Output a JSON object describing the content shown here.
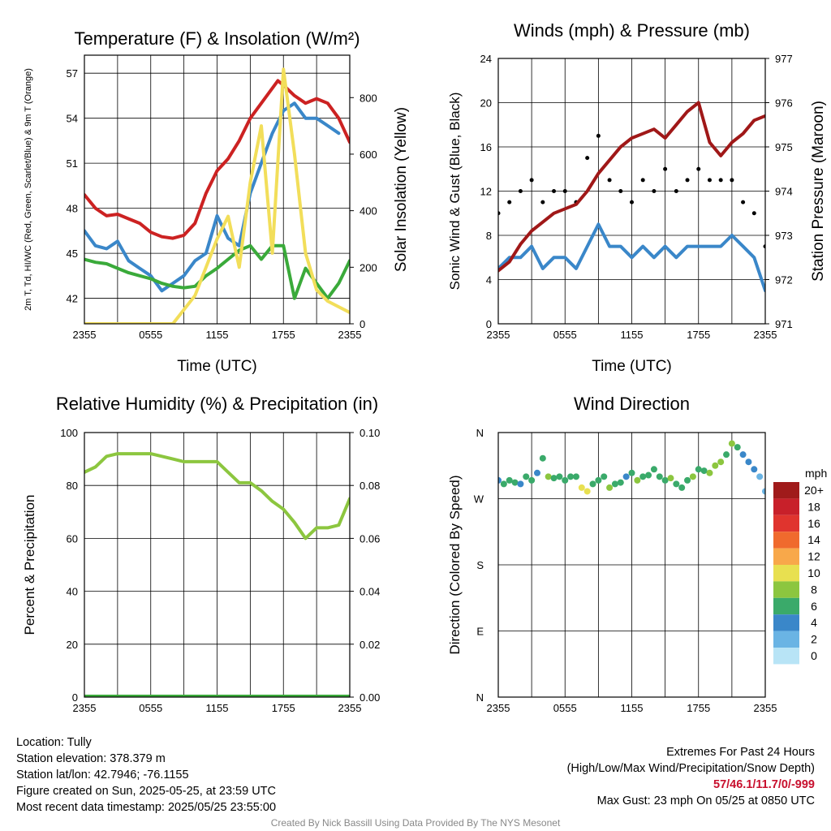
{
  "chart_data": [
    {
      "type": "line",
      "title": "Temperature (F) & Insolation (W/m²)",
      "xlabel": "Time (UTC)",
      "ylabel": "2m T, Td, HI/WC (Red, Green, Scarlet/Blue) & 9m T (Orange)",
      "y2label": "Solar Insolation (Yellow)",
      "x_ticks": [
        "2355",
        "0555",
        "1155",
        "1755",
        "2355"
      ],
      "yticks": [
        42,
        45,
        48,
        51,
        54,
        57
      ],
      "ylim": [
        40.3,
        58.2
      ],
      "y2ticks": [
        0,
        200,
        400,
        600,
        800
      ],
      "y2lim": [
        0,
        950
      ],
      "series": [
        {
          "axis": "left",
          "color": "#cc2222",
          "x": [
            0,
            1,
            2,
            3,
            4,
            5,
            6,
            7,
            8,
            9,
            10,
            11,
            12,
            13,
            14,
            15,
            16,
            17,
            17.5,
            18,
            19,
            20,
            21,
            22,
            22.5,
            23,
            24
          ],
          "values": [
            48.9,
            48.0,
            47.5,
            47.6,
            47.3,
            47.0,
            46.4,
            46.1,
            46.0,
            46.2,
            47.0,
            49.0,
            50.5,
            51.3,
            52.5,
            54.0,
            55.0,
            56.0,
            56.5,
            56.2,
            55.5,
            55.0,
            55.3,
            55.0,
            54.5,
            54.0,
            52.4
          ]
        },
        {
          "axis": "left",
          "color": "#3a87c9",
          "x": [
            0,
            1,
            2,
            3,
            4,
            5,
            6,
            7,
            8,
            9,
            10,
            11,
            12,
            13,
            14,
            15,
            16,
            17,
            18,
            19,
            20,
            21,
            22,
            23
          ],
          "values": [
            46.5,
            45.5,
            45.3,
            45.8,
            44.5,
            44.0,
            43.5,
            42.5,
            43.0,
            43.5,
            44.5,
            45.0,
            47.5,
            46.0,
            45.5,
            49.0,
            51.0,
            53.0,
            54.5,
            55.0,
            54.0,
            54.0,
            53.5,
            53.0
          ]
        },
        {
          "axis": "left",
          "color": "#3aaa3a",
          "x": [
            0,
            1,
            2,
            3,
            4,
            5,
            6,
            7,
            8,
            9,
            10,
            11,
            12,
            13,
            14,
            15,
            16,
            17,
            18,
            19,
            20,
            21,
            22,
            23,
            24
          ],
          "values": [
            44.6,
            44.4,
            44.3,
            44.0,
            43.7,
            43.5,
            43.3,
            43.0,
            42.8,
            42.7,
            42.8,
            43.5,
            44.0,
            44.6,
            45.2,
            45.5,
            44.6,
            45.5,
            45.5,
            42.0,
            44.0,
            43.0,
            42.0,
            43.0,
            44.5
          ]
        },
        {
          "axis": "right",
          "color": "#f2de5a",
          "x": [
            0,
            8,
            10,
            11,
            12,
            13,
            14,
            15,
            16,
            17,
            18,
            19,
            20,
            21,
            22,
            23,
            24
          ],
          "values": [
            0,
            0,
            100,
            200,
            300,
            380,
            200,
            500,
            700,
            250,
            900,
            600,
            250,
            120,
            80,
            60,
            40
          ]
        }
      ]
    },
    {
      "type": "line",
      "title": "Winds (mph) & Pressure (mb)",
      "xlabel": "Time (UTC)",
      "ylabel": "Sonic Wind & Gust (Blue, Black)",
      "y2label": "Station Pressure (Maroon)",
      "x_ticks": [
        "2355",
        "0555",
        "1155",
        "1755",
        "2355"
      ],
      "yticks": [
        0,
        4,
        8,
        12,
        16,
        20,
        24
      ],
      "ylim": [
        0,
        24
      ],
      "y2ticks": [
        971,
        972,
        973,
        974,
        975,
        976,
        977
      ],
      "y2lim": [
        971,
        977
      ],
      "series": [
        {
          "axis": "left",
          "color": "#3a87c9",
          "x": [
            0,
            1,
            2,
            3,
            4,
            5,
            6,
            7,
            8,
            9,
            10,
            11,
            12,
            13,
            14,
            15,
            16,
            17,
            18,
            19,
            20,
            21,
            22,
            23,
            24
          ],
          "values": [
            5,
            6,
            6,
            7,
            5,
            6,
            6,
            5,
            7,
            9,
            7,
            7,
            6,
            7,
            6,
            7,
            6,
            7,
            7,
            7,
            7,
            8,
            7,
            6,
            3
          ]
        },
        {
          "axis": "left",
          "color": "#000000",
          "type": "scatter",
          "x": [
            0,
            1,
            2,
            3,
            4,
            5,
            6,
            7,
            8,
            9,
            10,
            11,
            12,
            13,
            14,
            15,
            16,
            17,
            18,
            19,
            20,
            21,
            22,
            23,
            24
          ],
          "values": [
            10,
            11,
            12,
            13,
            11,
            12,
            12,
            11,
            15,
            17,
            13,
            12,
            11,
            13,
            12,
            14,
            12,
            13,
            14,
            13,
            13,
            13,
            11,
            10,
            7
          ]
        },
        {
          "axis": "right",
          "color": "#a01818",
          "x": [
            0,
            1,
            2,
            3,
            4,
            5,
            6,
            7,
            8,
            9,
            10,
            11,
            12,
            13,
            14,
            15,
            16,
            17,
            18,
            19,
            20,
            21,
            22,
            23,
            24
          ],
          "values": [
            972.2,
            972.4,
            972.8,
            973.1,
            973.3,
            973.5,
            973.6,
            973.7,
            974.0,
            974.4,
            974.7,
            975.0,
            975.2,
            975.3,
            975.4,
            975.2,
            975.5,
            975.8,
            976.0,
            975.1,
            974.8,
            975.1,
            975.3,
            975.6,
            975.7
          ]
        }
      ]
    },
    {
      "type": "line",
      "title": "Relative Humidity (%) & Precipitation (in)",
      "xlabel": "",
      "ylabel": "Percent & Precipitation",
      "x_ticks": [
        "2355",
        "0555",
        "1155",
        "1755",
        "2355"
      ],
      "yticks": [
        0,
        20,
        40,
        60,
        80,
        100
      ],
      "ylim": [
        0,
        100
      ],
      "y2ticks": [
        "0.00",
        "0.02",
        "0.04",
        "0.06",
        "0.08",
        "0.10"
      ],
      "y2lim": [
        0,
        0.1
      ],
      "series": [
        {
          "axis": "left",
          "color": "#8cc63f",
          "x": [
            0,
            1,
            2,
            3,
            4,
            5,
            6,
            7,
            8,
            9,
            10,
            11,
            12,
            13,
            14,
            15,
            16,
            17,
            18,
            19,
            20,
            21,
            22,
            23,
            24
          ],
          "values": [
            85,
            87,
            91,
            92,
            92,
            92,
            92,
            91,
            90,
            89,
            89,
            89,
            89,
            85,
            81,
            81,
            78,
            74,
            71,
            66,
            60,
            64,
            64,
            65,
            75
          ]
        },
        {
          "axis": "right",
          "color": "#3aaa3a",
          "x": [
            0,
            24
          ],
          "values": [
            0,
            0
          ]
        }
      ]
    },
    {
      "type": "scatter",
      "title": "Wind Direction",
      "ylabel": "Direction (Colored By Speed)",
      "x_ticks": [
        "2355",
        "0555",
        "1155",
        "1755",
        "2355"
      ],
      "yticks": [
        "N",
        "E",
        "S",
        "W",
        "N"
      ],
      "ylim": [
        0,
        360
      ],
      "legend": {
        "title": "mph",
        "labels": [
          "20+",
          "18",
          "16",
          "14",
          "12",
          "10",
          "8",
          "6",
          "4",
          "2",
          "0"
        ],
        "colors": [
          "#a01b1b",
          "#c8202a",
          "#e0342e",
          "#f06a2d",
          "#f8a84a",
          "#e8e050",
          "#8cc63f",
          "#3aaa6a",
          "#3a87c9",
          "#6ab4e4",
          "#b8e4f6"
        ],
        "placement": "right"
      },
      "points": {
        "x": [
          0,
          0.5,
          1,
          1.5,
          2,
          2.5,
          3,
          3.5,
          4,
          4.5,
          5,
          5.5,
          6,
          6.5,
          7,
          7.5,
          8,
          8.5,
          9,
          9.5,
          10,
          10.5,
          11,
          11.5,
          12,
          12.5,
          13,
          13.5,
          14,
          14.5,
          15,
          15.5,
          16,
          16.5,
          17,
          17.5,
          18,
          18.5,
          19,
          19.5,
          20,
          20.5,
          21,
          21.5,
          22,
          22.5,
          23,
          23.5,
          24
        ],
        "dir": [
          295,
          290,
          295,
          292,
          290,
          300,
          295,
          305,
          325,
          300,
          298,
          300,
          295,
          300,
          300,
          285,
          280,
          290,
          295,
          300,
          285,
          290,
          292,
          300,
          305,
          295,
          300,
          302,
          310,
          300,
          295,
          298,
          290,
          285,
          295,
          300,
          310,
          308,
          305,
          315,
          320,
          330,
          345,
          340,
          330,
          320,
          310,
          300,
          280
        ],
        "speed": [
          5,
          6,
          6,
          7,
          5,
          6,
          6,
          5,
          7,
          9,
          7,
          7,
          6,
          7,
          6,
          10,
          11,
          7,
          6,
          7,
          8,
          7,
          6,
          5,
          7,
          8,
          6,
          7,
          6,
          7,
          6,
          8,
          7,
          6,
          7,
          8,
          7,
          7,
          8,
          9,
          9,
          7,
          8,
          6,
          5,
          4,
          4,
          3,
          3
        ]
      }
    }
  ],
  "footer": {
    "location": "Location: Tully",
    "elevation": "Station elevation: 378.379 m",
    "latlon": "Station lat/lon: 42.7946; -76.1155",
    "created": "Figure created on Sun, 2025-05-25, at 23:59 UTC",
    "recent": "Most recent data timestamp: 2025/05/25 23:55:00",
    "extremes_title": "Extremes For Past 24 Hours",
    "extremes_sub": "(High/Low/Max Wind/Precipitation/Snow Depth)",
    "extremes_values": "57/46.1/11.7/0/-999",
    "max_gust": "Max Gust: 23 mph On 05/25 at 0850 UTC",
    "credit": "Created By Nick Bassill Using Data Provided By The NYS Mesonet"
  }
}
